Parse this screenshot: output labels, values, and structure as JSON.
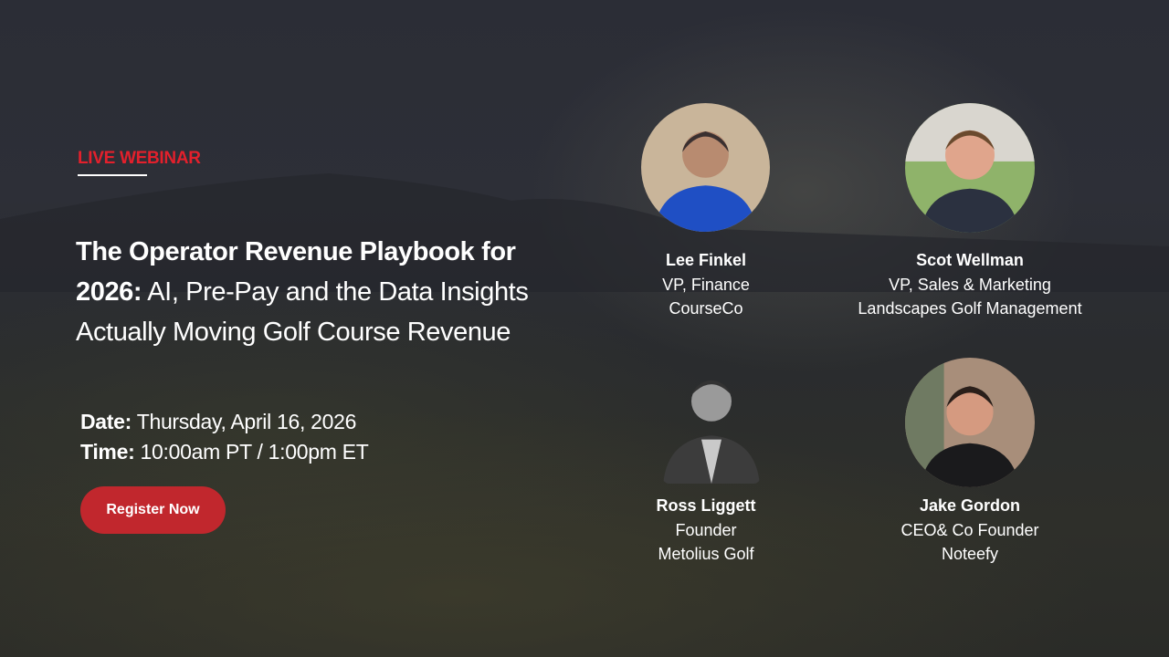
{
  "badge": "LIVE WEBINAR",
  "title": {
    "bold": "The Operator Revenue Playbook for 2026:",
    "regular": " AI, Pre-Pay and the Data Insights Actually Moving Golf Course Revenue"
  },
  "date": {
    "label": "Date:",
    "value": "Thursday, April 16, 2026"
  },
  "time": {
    "label": "Time:",
    "value": "10:00am PT / 1:00pm ET"
  },
  "register_button": "Register Now",
  "colors": {
    "accent": "#e3202c",
    "button": "#c1272d",
    "background": "#2b2d36"
  },
  "speakers": [
    {
      "name": "Lee Finkel",
      "role": "VP, Finance",
      "company": "CourseCo"
    },
    {
      "name": "Scot Wellman",
      "role": "VP, Sales & Marketing",
      "company": "Landscapes Golf Management"
    },
    {
      "name": "Ross Liggett",
      "role": "Founder",
      "company": "Metolius Golf"
    },
    {
      "name": "Jake Gordon",
      "role": "CEO& Co Founder",
      "company": "Noteefy"
    }
  ]
}
